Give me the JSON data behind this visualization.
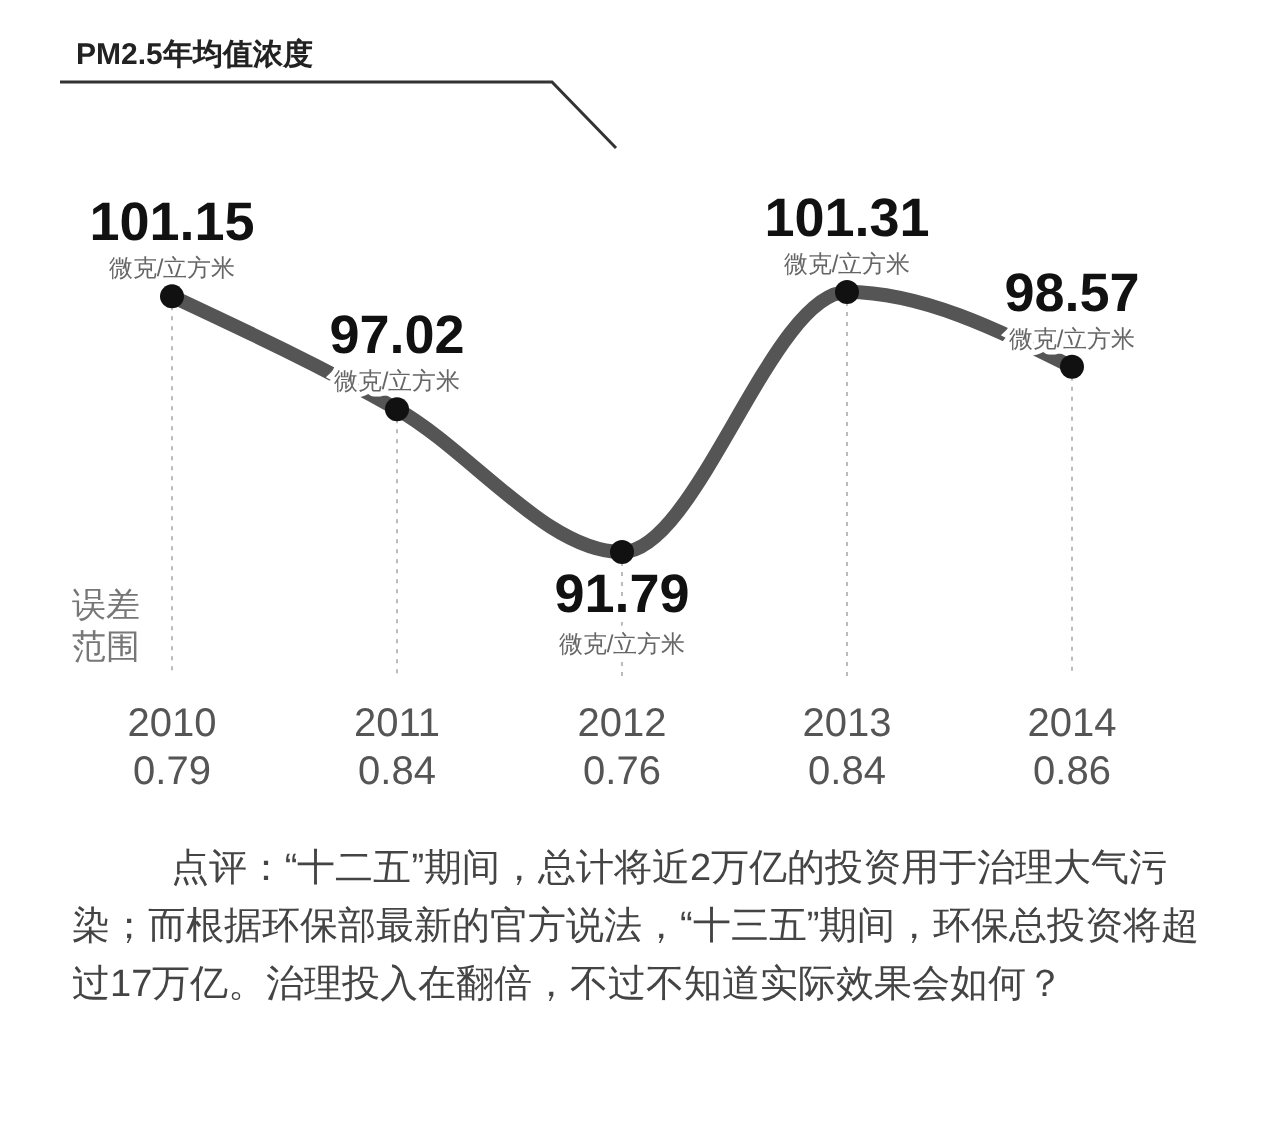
{
  "chart_data": {
    "type": "line",
    "title": "PM2.5年均值浓度",
    "categories": [
      "2010",
      "2011",
      "2012",
      "2013",
      "2014"
    ],
    "series": [
      {
        "color": "#555555",
        "values": [
          101.15,
          97.02,
          91.79,
          101.31,
          98.57
        ]
      }
    ],
    "data_labels": true,
    "grid": "x",
    "marker": "circle",
    "line_style": "solid",
    "annotations": [
      {
        "text": "微克/立方米",
        "x": "2010",
        "y": 101.15
      },
      {
        "text": "微克/立方米",
        "x": "2011",
        "y": 97.02
      },
      {
        "text": "微克/立方米",
        "x": "2012",
        "y": 91.79
      },
      {
        "text": "微克/立方米",
        "x": "2013",
        "y": 101.31
      },
      {
        "text": "微克/立方米",
        "x": "2014",
        "y": 98.57
      },
      "0.79",
      "0.84",
      "0.76",
      "0.84",
      "0.86",
      "误差范围",
      "点评：“十二五”期间，总计将近2万亿的投资用于治理大气污染；而根据环保部最新的官方说法，“十三五”期间，环保总投资将超过17万亿。治理投入在翻倍，不过不知道实际效果会如何？"
    ]
  }
}
